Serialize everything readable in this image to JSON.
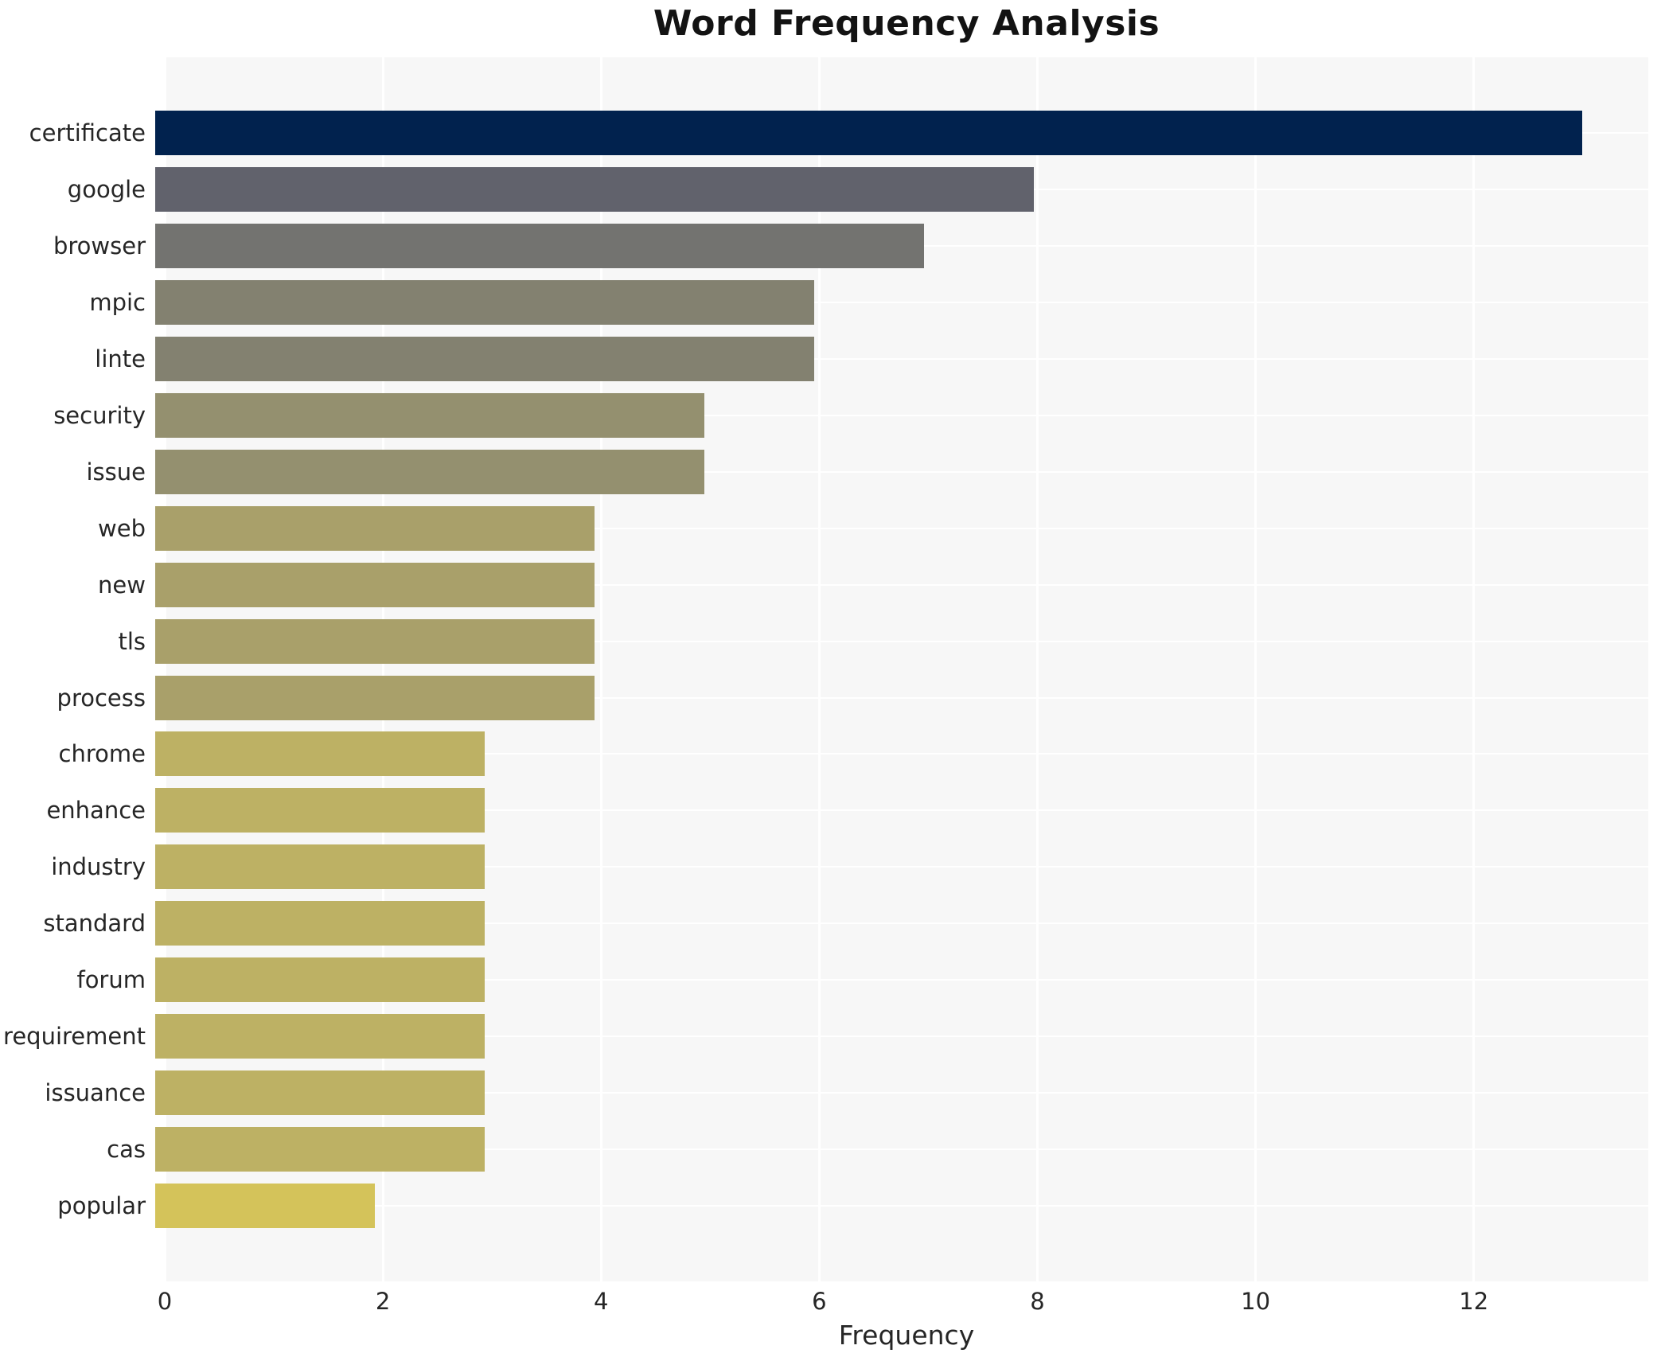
{
  "chart_data": {
    "type": "bar",
    "orientation": "horizontal",
    "title": "Word Frequency Analysis",
    "xlabel": "Frequency",
    "ylabel": "",
    "categories": [
      "certificate",
      "google",
      "browser",
      "mpic",
      "linte",
      "security",
      "issue",
      "web",
      "new",
      "tls",
      "process",
      "chrome",
      "enhance",
      "industry",
      "standard",
      "forum",
      "requirement",
      "issuance",
      "cas",
      "popular"
    ],
    "values": [
      13,
      8,
      7,
      6,
      6,
      5,
      5,
      4,
      4,
      4,
      4,
      3,
      3,
      3,
      3,
      3,
      3,
      3,
      3,
      2
    ],
    "bar_colors": [
      "#01224e",
      "#61626c",
      "#737370",
      "#838170",
      "#838170",
      "#94906f",
      "#94906f",
      "#a9a06a",
      "#a9a06a",
      "#a9a06a",
      "#a9a06a",
      "#bdb164",
      "#bdb164",
      "#bdb164",
      "#bdb164",
      "#bdb164",
      "#bdb164",
      "#bdb164",
      "#bdb164",
      "#d4c35a"
    ],
    "x_ticks": [
      0,
      2,
      4,
      6,
      8,
      10,
      12
    ],
    "xlim": [
      0,
      13.6
    ],
    "grid": true,
    "legend": "none",
    "plot_background": "#f7f7f7",
    "gridline_color": "#ffffff",
    "text_color": "#262626",
    "title_color": "#131313"
  }
}
